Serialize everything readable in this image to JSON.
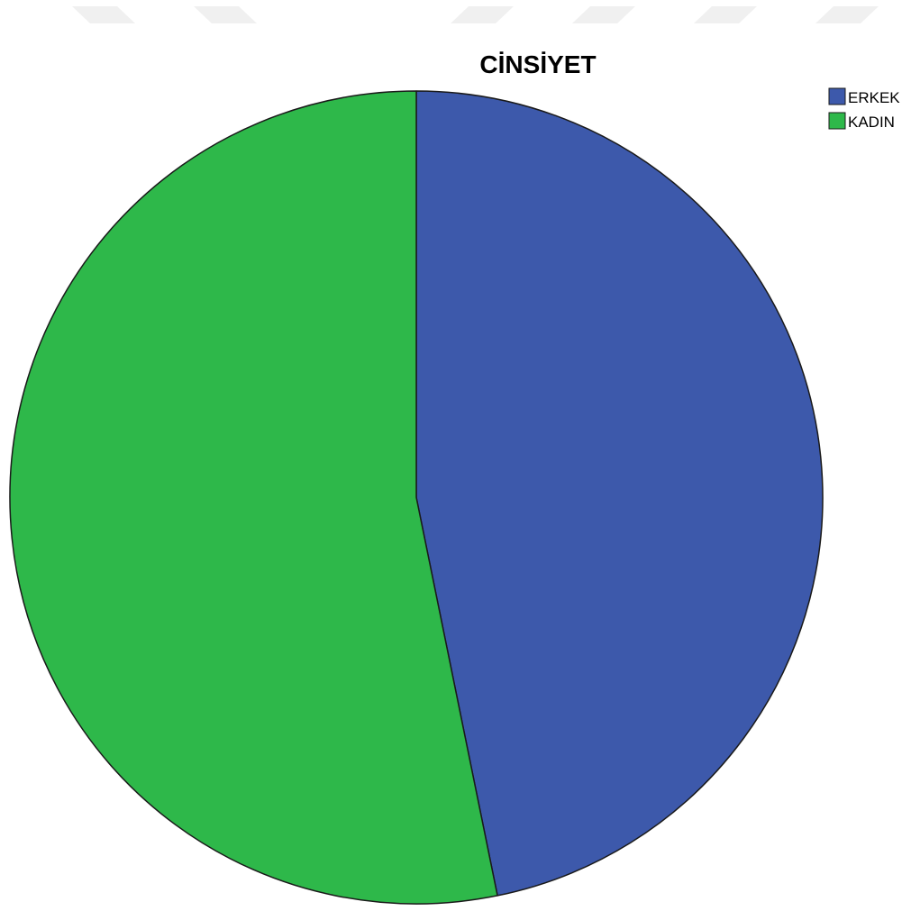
{
  "chart_data": {
    "type": "pie",
    "title": "CİNSİYET",
    "legend_position": "top-right",
    "start_angle_deg": 0,
    "direction": "clockwise",
    "slices": [
      {
        "name": "ERKEK",
        "value": 46.8,
        "color": "#3d59ab"
      },
      {
        "name": "KADIN",
        "value": 53.2,
        "color": "#2eb84a"
      }
    ]
  }
}
